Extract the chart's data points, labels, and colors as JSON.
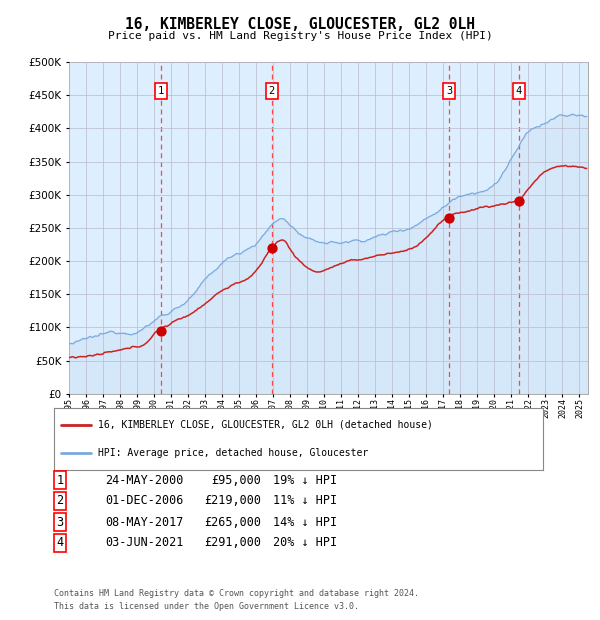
{
  "title": "16, KIMBERLEY CLOSE, GLOUCESTER, GL2 0LH",
  "subtitle": "Price paid vs. HM Land Registry's House Price Index (HPI)",
  "footer_line1": "Contains HM Land Registry data © Crown copyright and database right 2024.",
  "footer_line2": "This data is licensed under the Open Government Licence v3.0.",
  "legend_red": "16, KIMBERLEY CLOSE, GLOUCESTER, GL2 0LH (detached house)",
  "legend_blue": "HPI: Average price, detached house, Gloucester",
  "transactions": [
    {
      "num": 1,
      "date": "24-MAY-2000",
      "price": 95000,
      "hpi_diff": "19% ↓ HPI",
      "year": 2000.4
    },
    {
      "num": 2,
      "date": "01-DEC-2006",
      "price": 219000,
      "hpi_diff": "11% ↓ HPI",
      "year": 2006.92
    },
    {
      "num": 3,
      "date": "08-MAY-2017",
      "price": 265000,
      "hpi_diff": "14% ↓ HPI",
      "year": 2017.35
    },
    {
      "num": 4,
      "date": "03-JUN-2021",
      "price": 291000,
      "hpi_diff": "20% ↓ HPI",
      "year": 2021.42
    }
  ],
  "hpi_color": "#7aaadd",
  "hpi_fill_color": "#c8ddf0",
  "price_color": "#cc2222",
  "bg_color": "#ddeeff",
  "grid_color": "#bbbbcc",
  "vline_color": "#ff4444",
  "dot_color": "#cc0000",
  "ylim": [
    0,
    500000
  ],
  "yticks": [
    0,
    50000,
    100000,
    150000,
    200000,
    250000,
    300000,
    350000,
    400000,
    450000,
    500000
  ],
  "xmin": 1995,
  "xmax": 2025.5
}
